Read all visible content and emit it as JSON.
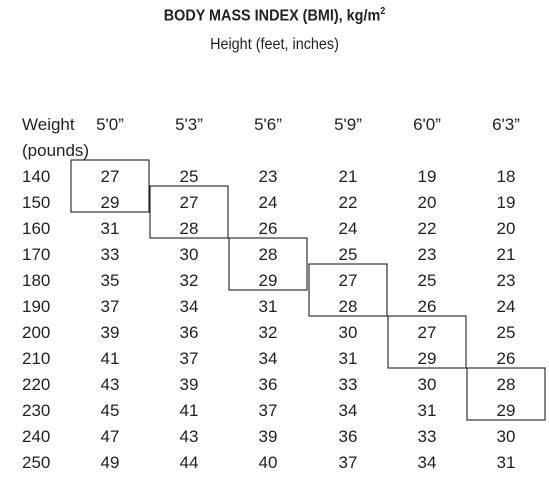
{
  "chart_data": {
    "type": "table",
    "title": "BODY MASS INDEX (BMI), kg/m",
    "title_sup": "2",
    "subtitle": "Height (feet, inches)",
    "row_header": [
      "Weight",
      "(pounds)"
    ],
    "columns": [
      "5'0”",
      "5'3”",
      "5'6”",
      "5'9”",
      "6'0”",
      "6'3”"
    ],
    "rows": [
      {
        "weight": "140",
        "values": [
          "27",
          "25",
          "23",
          "21",
          "19",
          "18"
        ]
      },
      {
        "weight": "150",
        "values": [
          "29",
          "27",
          "24",
          "22",
          "20",
          "19"
        ]
      },
      {
        "weight": "160",
        "values": [
          "31",
          "28",
          "26",
          "24",
          "22",
          "20"
        ]
      },
      {
        "weight": "170",
        "values": [
          "33",
          "30",
          "28",
          "25",
          "23",
          "21"
        ]
      },
      {
        "weight": "180",
        "values": [
          "35",
          "32",
          "29",
          "27",
          "25",
          "23"
        ]
      },
      {
        "weight": "190",
        "values": [
          "37",
          "34",
          "31",
          "28",
          "26",
          "24"
        ]
      },
      {
        "weight": "200",
        "values": [
          "39",
          "36",
          "32",
          "30",
          "27",
          "25"
        ]
      },
      {
        "weight": "210",
        "values": [
          "41",
          "37",
          "34",
          "31",
          "29",
          "26"
        ]
      },
      {
        "weight": "220",
        "values": [
          "43",
          "39",
          "36",
          "33",
          "30",
          "28"
        ]
      },
      {
        "weight": "230",
        "values": [
          "45",
          "41",
          "37",
          "34",
          "31",
          "29"
        ]
      },
      {
        "weight": "240",
        "values": [
          "47",
          "43",
          "39",
          "36",
          "33",
          "30"
        ]
      },
      {
        "weight": "250",
        "values": [
          "49",
          "44",
          "40",
          "37",
          "34",
          "31"
        ]
      }
    ],
    "highlight_boxes": [
      {
        "column": 0,
        "first_row": 0,
        "last_row": 1
      },
      {
        "column": 1,
        "first_row": 1,
        "last_row": 2
      },
      {
        "column": 2,
        "first_row": 3,
        "last_row": 4
      },
      {
        "column": 3,
        "first_row": 4,
        "last_row": 5
      },
      {
        "column": 4,
        "first_row": 6,
        "last_row": 7
      },
      {
        "column": 5,
        "first_row": 8,
        "last_row": 9
      }
    ]
  }
}
